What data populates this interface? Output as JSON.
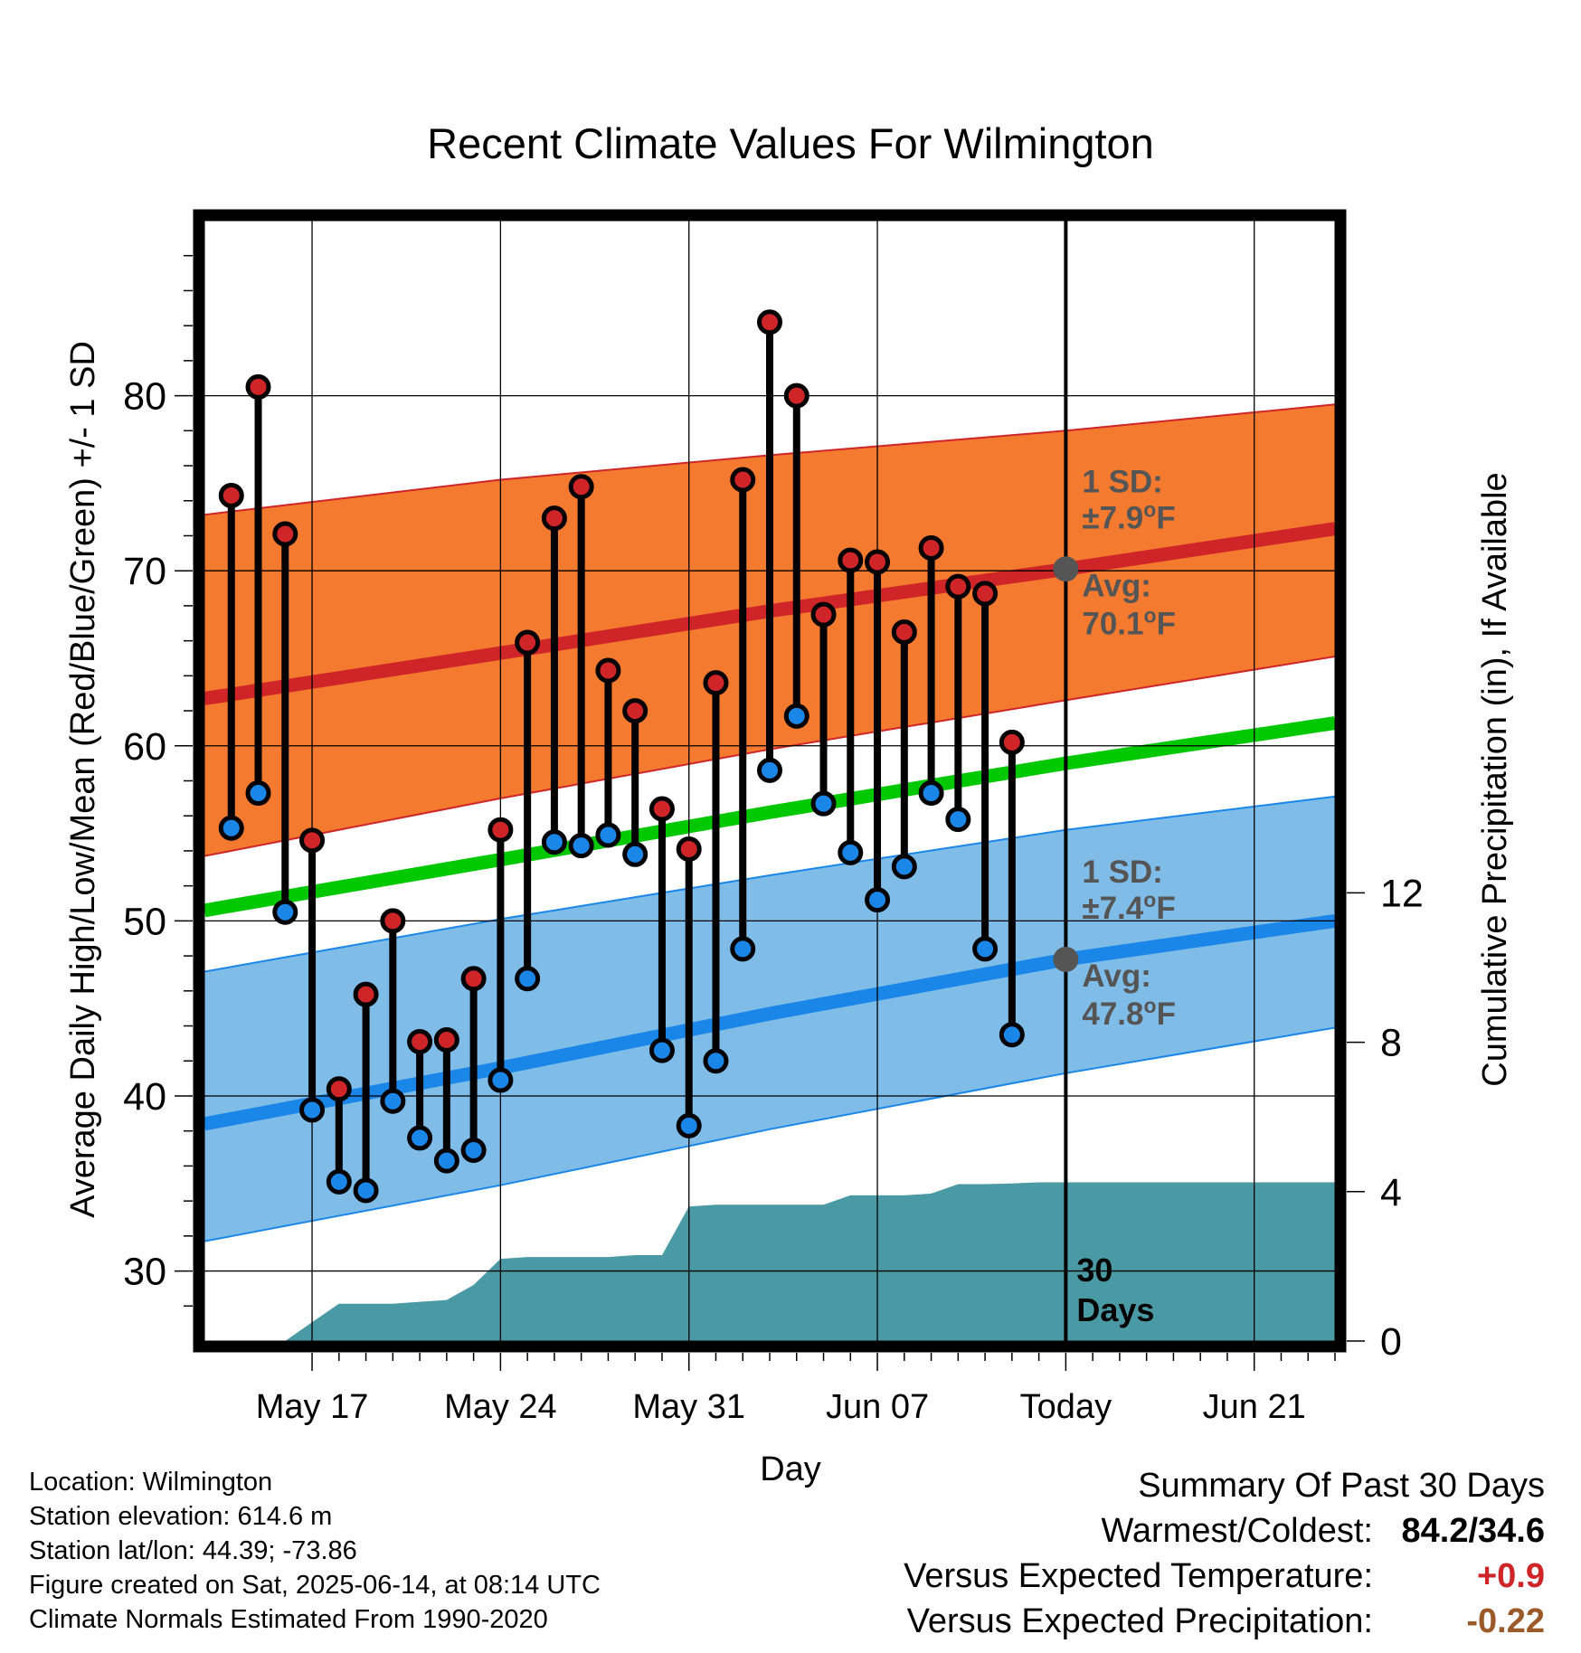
{
  "chart_data": {
    "type": "line",
    "title": "Recent Climate Values For Wilmington",
    "xlabel": "Day",
    "ylabel": "Average Daily High/Low/Mean (Red/Blue/Green) +/- 1 SD",
    "y2label": "Cumulative Precipitation (in), If Available",
    "xlim": [
      "2025-05-13",
      "2025-06-24"
    ],
    "ylim": [
      26,
      90
    ],
    "y2lim": [
      0,
      30
    ],
    "x_ticks": [
      "2025-05-17",
      "2025-05-24",
      "2025-05-31",
      "2025-06-07",
      "2025-06-14",
      "2025-06-21"
    ],
    "x_tick_labels": [
      "May 17",
      "May 24",
      "May 31",
      "Jun 07",
      "Today",
      "Jun 21"
    ],
    "y_ticks": [
      30,
      40,
      50,
      60,
      70,
      80
    ],
    "y_tick_labels": [
      "30",
      "40",
      "50",
      "60",
      "70",
      "80"
    ],
    "y2_ticks": [
      0,
      4,
      8,
      12
    ],
    "y2_tick_labels": [
      "0",
      "4",
      "8",
      "12"
    ],
    "grid": true,
    "today": "2025-06-14",
    "today_label": [
      "30",
      "Days"
    ],
    "dates": [
      "2025-05-14",
      "2025-05-15",
      "2025-05-16",
      "2025-05-17",
      "2025-05-18",
      "2025-05-19",
      "2025-05-20",
      "2025-05-21",
      "2025-05-22",
      "2025-05-23",
      "2025-05-24",
      "2025-05-25",
      "2025-05-26",
      "2025-05-27",
      "2025-05-28",
      "2025-05-29",
      "2025-05-30",
      "2025-05-31",
      "2025-06-01",
      "2025-06-02",
      "2025-06-03",
      "2025-06-04",
      "2025-06-05",
      "2025-06-06",
      "2025-06-07",
      "2025-06-08",
      "2025-06-09",
      "2025-06-10",
      "2025-06-11",
      "2025-06-12",
      "2025-06-13"
    ],
    "highs": [
      74.3,
      80.5,
      72.1,
      54.6,
      40.4,
      45.8,
      50.0,
      43.1,
      43.2,
      46.7,
      55.2,
      65.9,
      73.0,
      74.8,
      64.3,
      62.0,
      56.4,
      54.1,
      63.6,
      75.2,
      84.2,
      80.0,
      67.5,
      70.6,
      70.5,
      66.5,
      71.3,
      69.1,
      68.7,
      60.2,
      null
    ],
    "lows": [
      55.3,
      57.3,
      50.5,
      39.2,
      35.1,
      34.6,
      39.7,
      37.6,
      36.3,
      36.9,
      40.9,
      46.7,
      54.5,
      54.3,
      54.9,
      53.8,
      42.6,
      38.3,
      42.0,
      48.4,
      58.6,
      61.7,
      56.7,
      53.9,
      51.2,
      53.1,
      57.3,
      55.8,
      48.4,
      43.5,
      null
    ],
    "normals": {
      "dates": [
        "2025-05-13",
        "2025-05-24",
        "2025-06-03",
        "2025-06-14",
        "2025-06-24"
      ],
      "high_avg": [
        62.7,
        65.3,
        67.7,
        70.1,
        72.4
      ],
      "high_upper": [
        73.2,
        75.2,
        76.6,
        78.0,
        79.5
      ],
      "high_lower": [
        53.7,
        57.0,
        59.8,
        62.6,
        65.1
      ],
      "mean_avg": [
        50.6,
        53.5,
        56.2,
        59.0,
        61.3
      ],
      "low_avg": [
        38.4,
        41.6,
        44.7,
        47.8,
        50.0
      ],
      "low_upper": [
        47.1,
        50.1,
        52.6,
        55.2,
        57.1
      ],
      "low_lower": [
        31.7,
        34.9,
        38.1,
        41.3,
        43.9
      ]
    },
    "precip_cumulative": {
      "dates": [
        "2025-05-14",
        "2025-05-15",
        "2025-05-16",
        "2025-05-17",
        "2025-05-18",
        "2025-05-19",
        "2025-05-20",
        "2025-05-21",
        "2025-05-22",
        "2025-05-23",
        "2025-05-24",
        "2025-05-25",
        "2025-05-26",
        "2025-05-27",
        "2025-05-28",
        "2025-05-29",
        "2025-05-30",
        "2025-05-31",
        "2025-06-01",
        "2025-06-02",
        "2025-06-03",
        "2025-06-04",
        "2025-06-05",
        "2025-06-06",
        "2025-06-07",
        "2025-06-08",
        "2025-06-09",
        "2025-06-10",
        "2025-06-11",
        "2025-06-12",
        "2025-06-13",
        "2025-06-14",
        "2025-06-24"
      ],
      "values": [
        0,
        0,
        0,
        0.5,
        1.0,
        1.0,
        1.0,
        1.05,
        1.1,
        1.5,
        2.2,
        2.25,
        2.25,
        2.25,
        2.25,
        2.3,
        2.3,
        3.6,
        3.65,
        3.65,
        3.65,
        3.65,
        3.65,
        3.9,
        3.9,
        3.9,
        3.95,
        4.2,
        4.2,
        4.22,
        4.25,
        4.25,
        4.25
      ]
    },
    "annotations": {
      "high_sd_label": "1 SD:",
      "high_sd_value": "±7.9",
      "high_avg_label": "Avg:",
      "high_avg_value": "70.1",
      "low_sd_label": "1 SD:",
      "low_sd_value": "±7.4",
      "low_avg_label": "Avg:",
      "low_avg_value": "47.8",
      "degree": "o",
      "unit": "F"
    },
    "colors": {
      "high_band": "#f47a2f",
      "high_line": "#cf2528",
      "low_band": "#7fbde8",
      "low_line": "#1a87e8",
      "mean_line": "#00c800",
      "precip": "#4a9aa5",
      "high_dot": "#cf2528",
      "low_dot": "#1a87e8",
      "annotation": "#555555"
    }
  },
  "info": {
    "location": "Location: Wilmington",
    "elevation": "Station elevation: 614.6 m",
    "latlon": "Station lat/lon: 44.39; -73.86",
    "created": "Figure created on Sat, 2025-06-14, at 08:14 UTC",
    "normals": "Climate Normals Estimated From 1990-2020"
  },
  "summary": {
    "title": "Summary Of Past 30 Days",
    "warm_cold_label": "Warmest/Coldest:",
    "warm_cold_value": "84.2/34.6",
    "temp_label": "Versus Expected Temperature:",
    "temp_value": "+0.9",
    "temp_color": "#cf2528",
    "precip_label": "Versus Expected Precipitation:",
    "precip_value": "-0.22",
    "precip_color": "#9c5a2a"
  }
}
